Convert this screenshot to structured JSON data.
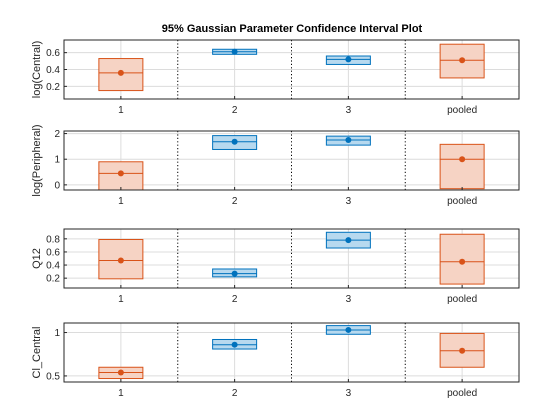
{
  "title": "95% Gaussian Parameter Confidence Interval Plot",
  "colors": {
    "orange_edge": "#d95319",
    "orange_fill": "#f6d3c4",
    "blue_edge": "#0072bd",
    "blue_fill": "#b7d9ef",
    "grid": "#dcdcdc",
    "axes": "#262626"
  },
  "chart_data": [
    {
      "type": "box",
      "ylabel": "log(Central)",
      "categories": [
        "1",
        "2",
        "3",
        "pooled"
      ],
      "ylim": [
        0.05,
        0.75
      ],
      "yticks": [
        0.2,
        0.4,
        0.6
      ],
      "ytick_labels": [
        "0.2",
        "0.4",
        "0.6"
      ],
      "grid": true,
      "items": [
        {
          "category": "1",
          "estimate": 0.36,
          "lower": 0.15,
          "upper": 0.53,
          "color": "orange"
        },
        {
          "category": "2",
          "estimate": 0.61,
          "lower": 0.58,
          "upper": 0.64,
          "color": "blue"
        },
        {
          "category": "3",
          "estimate": 0.52,
          "lower": 0.46,
          "upper": 0.56,
          "color": "blue"
        },
        {
          "category": "pooled",
          "estimate": 0.51,
          "lower": 0.3,
          "upper": 0.7,
          "color": "orange"
        }
      ]
    },
    {
      "type": "box",
      "ylabel": "log(Peripheral)",
      "categories": [
        "1",
        "2",
        "3",
        "pooled"
      ],
      "ylim": [
        -0.2,
        2.1
      ],
      "yticks": [
        0,
        1,
        2
      ],
      "ytick_labels": [
        "0",
        "1",
        "2"
      ],
      "grid": true,
      "items": [
        {
          "category": "1",
          "estimate": 0.45,
          "lower": -0.2,
          "upper": 0.9,
          "color": "orange"
        },
        {
          "category": "2",
          "estimate": 1.68,
          "lower": 1.38,
          "upper": 1.92,
          "color": "blue"
        },
        {
          "category": "3",
          "estimate": 1.75,
          "lower": 1.55,
          "upper": 1.9,
          "color": "blue"
        },
        {
          "category": "pooled",
          "estimate": 1.0,
          "lower": -0.15,
          "upper": 1.58,
          "color": "orange"
        }
      ]
    },
    {
      "type": "box",
      "ylabel": "Q12",
      "categories": [
        "1",
        "2",
        "3",
        "pooled"
      ],
      "ylim": [
        0.05,
        0.95
      ],
      "yticks": [
        0.2,
        0.4,
        0.6,
        0.8
      ],
      "ytick_labels": [
        "0.2",
        "0.4",
        "0.6",
        "0.8"
      ],
      "grid": true,
      "items": [
        {
          "category": "1",
          "estimate": 0.47,
          "lower": 0.19,
          "upper": 0.79,
          "color": "orange"
        },
        {
          "category": "2",
          "estimate": 0.27,
          "lower": 0.22,
          "upper": 0.34,
          "color": "blue"
        },
        {
          "category": "3",
          "estimate": 0.78,
          "lower": 0.66,
          "upper": 0.9,
          "color": "blue"
        },
        {
          "category": "pooled",
          "estimate": 0.45,
          "lower": 0.11,
          "upper": 0.87,
          "color": "orange"
        }
      ]
    },
    {
      "type": "box",
      "ylabel": "Cl_Central",
      "categories": [
        "1",
        "2",
        "3",
        "pooled"
      ],
      "ylim": [
        0.43,
        1.11
      ],
      "yticks": [
        0.5,
        1
      ],
      "ytick_labels": [
        "0.5",
        "1"
      ],
      "grid": true,
      "items": [
        {
          "category": "1",
          "estimate": 0.54,
          "lower": 0.47,
          "upper": 0.6,
          "color": "orange"
        },
        {
          "category": "2",
          "estimate": 0.86,
          "lower": 0.81,
          "upper": 0.92,
          "color": "blue"
        },
        {
          "category": "3",
          "estimate": 1.03,
          "lower": 0.98,
          "upper": 1.08,
          "color": "blue"
        },
        {
          "category": "pooled",
          "estimate": 0.79,
          "lower": 0.6,
          "upper": 0.99,
          "color": "orange"
        }
      ]
    }
  ]
}
